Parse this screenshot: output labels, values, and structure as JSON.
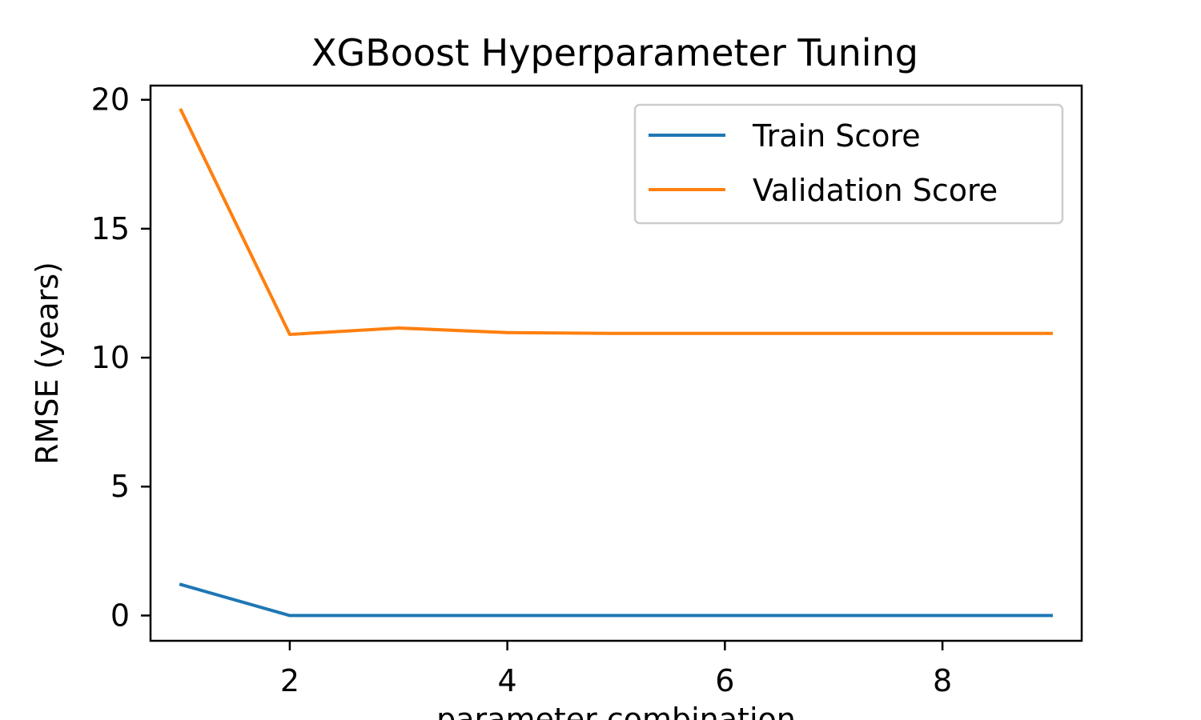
{
  "chart_data": {
    "type": "line",
    "title": "XGBoost Hyperparameter Tuning",
    "xlabel": "parameter combination",
    "ylabel": "RMSE (years)",
    "x": [
      1,
      2,
      3,
      4,
      5,
      6,
      7,
      8,
      9
    ],
    "xlim": [
      0.72,
      9.28
    ],
    "ylim": [
      -0.98,
      20.55
    ],
    "xticks": [
      2,
      4,
      6,
      8
    ],
    "yticks": [
      0,
      5,
      10,
      15,
      20
    ],
    "grid": false,
    "legend_position": "top-right",
    "series": [
      {
        "name": "Train Score",
        "color": "#1f77b4",
        "values": [
          1.2,
          0.0,
          0.0,
          0.0,
          0.0,
          0.0,
          0.0,
          0.0,
          0.0
        ]
      },
      {
        "name": "Validation Score",
        "color": "#ff7f0e",
        "values": [
          19.6,
          10.9,
          11.15,
          10.97,
          10.94,
          10.94,
          10.94,
          10.94,
          10.94
        ]
      }
    ]
  }
}
